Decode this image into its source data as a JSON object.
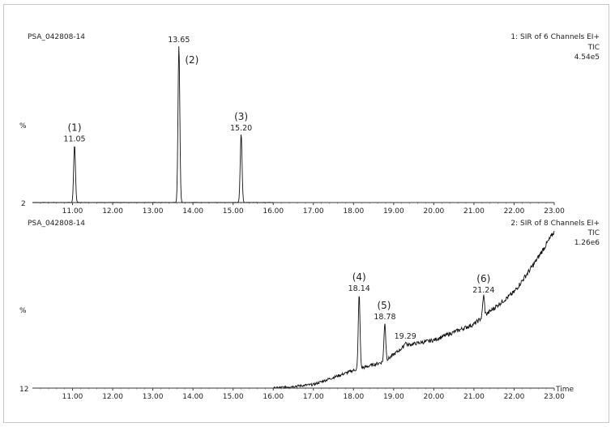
{
  "chart_data": [
    {
      "type": "line",
      "sample": "PSA_042808-14",
      "channel": "1: SIR of 6 Channels EI+",
      "trace": "TIC",
      "intensity": "4.54e5",
      "y_axis_char": "%",
      "y_baseline": "2",
      "xlim": [
        10.0,
        23.0
      ],
      "x_ticks": [
        "11.00",
        "12.00",
        "13.00",
        "14.00",
        "15.00",
        "16.00",
        "17.00",
        "18.00",
        "19.00",
        "20.00",
        "21.00",
        "22.00",
        "23.00"
      ],
      "trace_end": 16.0,
      "baseline_level": 2,
      "peaks": [
        {
          "rt": 11.05,
          "label": "11.05",
          "marker": "(1)",
          "height": 38
        },
        {
          "rt": 13.65,
          "label": "13.65",
          "marker": "(2)",
          "height": 100
        },
        {
          "rt": 15.2,
          "label": "15.20",
          "marker": "(3)",
          "height": 45
        }
      ]
    },
    {
      "type": "line",
      "sample": "PSA_042808-14",
      "channel": "2: SIR of 8 Channels EI+",
      "trace": "TIC",
      "intensity": "1.26e6",
      "y_axis_char": "%",
      "y_baseline": "12",
      "xlim": [
        10.0,
        23.0
      ],
      "x_ticks": [
        "11.00",
        "12.00",
        "13.00",
        "14.00",
        "15.00",
        "16.00",
        "17.00",
        "18.00",
        "19.00",
        "20.00",
        "21.00",
        "22.00",
        "23.00"
      ],
      "x_label": "Time",
      "trace_start": 16.0,
      "rising_baseline": [
        [
          16.0,
          12
        ],
        [
          17.0,
          14
        ],
        [
          18.0,
          22
        ],
        [
          18.78,
          27
        ],
        [
          19.29,
          36
        ],
        [
          20.0,
          39
        ],
        [
          21.0,
          48
        ],
        [
          22.0,
          66
        ],
        [
          22.5,
          82
        ],
        [
          23.0,
          100
        ]
      ],
      "peaks": [
        {
          "rt": 18.14,
          "label": "18.14",
          "marker": "(4)",
          "height": 65
        },
        {
          "rt": 18.78,
          "label": "18.78",
          "marker": "(5)",
          "height": 49
        },
        {
          "rt": 19.29,
          "label": "19.29",
          "marker": "",
          "height": 38
        },
        {
          "rt": 21.24,
          "label": "21.24",
          "marker": "(6)",
          "height": 64
        }
      ]
    }
  ]
}
